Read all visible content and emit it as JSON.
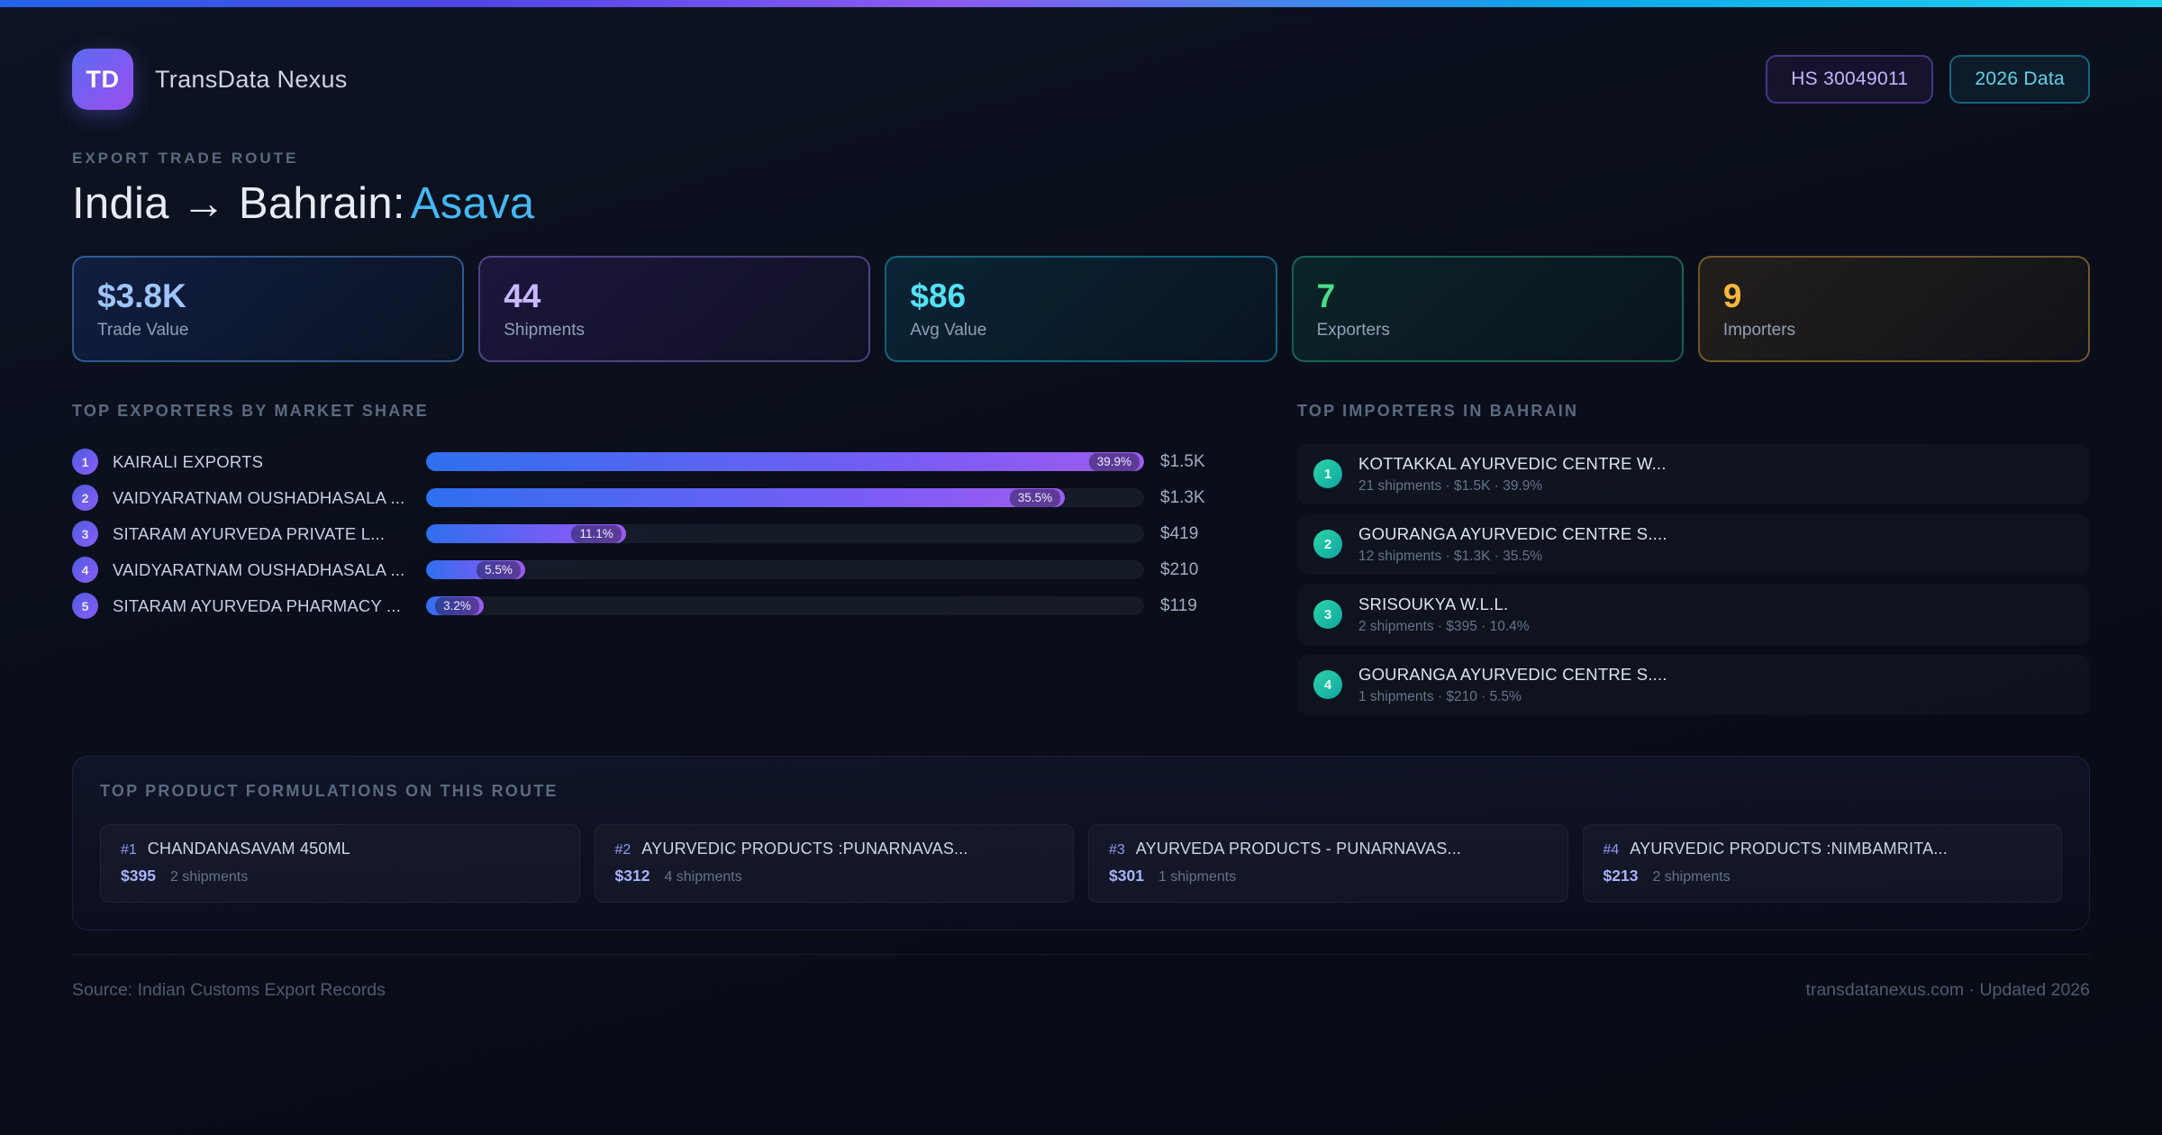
{
  "accent_colors": {
    "blue": "#3b82f6",
    "purple": "#8b5cf6",
    "cyan": "#22d3ee",
    "green": "#4ade80",
    "amber": "#fbbf24",
    "title_accent": "#44b8f3",
    "importer_dot": "#14b8a6"
  },
  "header": {
    "logo_text": "TD",
    "app_name": "TransData Nexus",
    "hs_badge": "HS 30049011",
    "year_badge": "2026 Data"
  },
  "hero": {
    "eyebrow": "EXPORT TRADE ROUTE",
    "title_route": "India → Bahrain:",
    "title_product": "Asava"
  },
  "stats": [
    {
      "value": "$3.8K",
      "label": "Trade Value",
      "color": "blue"
    },
    {
      "value": "44",
      "label": "Shipments",
      "color": "purple"
    },
    {
      "value": "$86",
      "label": "Avg Value",
      "color": "cyan"
    },
    {
      "value": "7",
      "label": "Exporters",
      "color": "green"
    },
    {
      "value": "9",
      "label": "Importers",
      "color": "amber"
    }
  ],
  "exporters": {
    "heading": "TOP EXPORTERS BY MARKET SHARE",
    "items": [
      {
        "rank": "1",
        "name": "KAIRALI EXPORTS",
        "share": "39.9%",
        "share_pct": 39.9,
        "value": "$1.5K"
      },
      {
        "rank": "2",
        "name": "VAIDYARATNAM OUSHADHASALA ...",
        "share": "35.5%",
        "share_pct": 35.5,
        "value": "$1.3K"
      },
      {
        "rank": "3",
        "name": "SITARAM AYURVEDA PRIVATE L...",
        "share": "11.1%",
        "share_pct": 11.1,
        "value": "$419"
      },
      {
        "rank": "4",
        "name": "VAIDYARATNAM OUSHADHASALA ...",
        "share": "5.5%",
        "share_pct": 5.5,
        "value": "$210"
      },
      {
        "rank": "5",
        "name": "SITARAM AYURVEDA PHARMACY ...",
        "share": "3.2%",
        "share_pct": 3.2,
        "value": "$119"
      }
    ]
  },
  "importers": {
    "heading": "TOP IMPORTERS IN BAHRAIN",
    "items": [
      {
        "rank": "1",
        "name": "KOTTAKKAL AYURVEDIC CENTRE W...",
        "meta": "21 shipments · $1.5K · 39.9%"
      },
      {
        "rank": "2",
        "name": "GOURANGA AYURVEDIC CENTRE S....",
        "meta": "12 shipments · $1.3K · 35.5%"
      },
      {
        "rank": "3",
        "name": "SRISOUKYA W.L.L.",
        "meta": "2 shipments · $395 · 10.4%"
      },
      {
        "rank": "4",
        "name": "GOURANGA AYURVEDIC CENTRE S....",
        "meta": "1 shipments · $210 · 5.5%"
      }
    ]
  },
  "products": {
    "heading": "TOP PRODUCT FORMULATIONS ON THIS ROUTE",
    "items": [
      {
        "rank": "#1",
        "name": "CHANDANASAVAM 450ML",
        "value": "$395",
        "shipments": "2 shipments"
      },
      {
        "rank": "#2",
        "name": "AYURVEDIC PRODUCTS :PUNARNAVAS...",
        "value": "$312",
        "shipments": "4 shipments"
      },
      {
        "rank": "#3",
        "name": "AYURVEDA PRODUCTS - PUNARNAVAS...",
        "value": "$301",
        "shipments": "1 shipments"
      },
      {
        "rank": "#4",
        "name": "AYURVEDIC PRODUCTS :NIMBAMRITA...",
        "value": "$213",
        "shipments": "2 shipments"
      }
    ]
  },
  "footer": {
    "source": "Source: Indian Customs Export Records",
    "site": "transdatanexus.com · Updated 2026"
  },
  "chart_data": {
    "type": "bar",
    "orientation": "horizontal",
    "title": "TOP EXPORTERS BY MARKET SHARE",
    "categories": [
      "KAIRALI EXPORTS",
      "VAIDYARATNAM OUSHADHASALA ...",
      "SITARAM AYURVEDA PRIVATE L...",
      "VAIDYARATNAM OUSHADHASALA ...",
      "SITARAM AYURVEDA PHARMACY ..."
    ],
    "series": [
      {
        "name": "Market share %",
        "values": [
          39.9,
          35.5,
          11.1,
          5.5,
          3.2
        ]
      },
      {
        "name": "Trade value",
        "values": [
          "$1.5K",
          "$1.3K",
          "$419",
          "$210",
          "$119"
        ]
      }
    ],
    "xlim": [
      0,
      39.9
    ],
    "grid": false,
    "legend": false,
    "bars_normalized_to_max": true
  }
}
